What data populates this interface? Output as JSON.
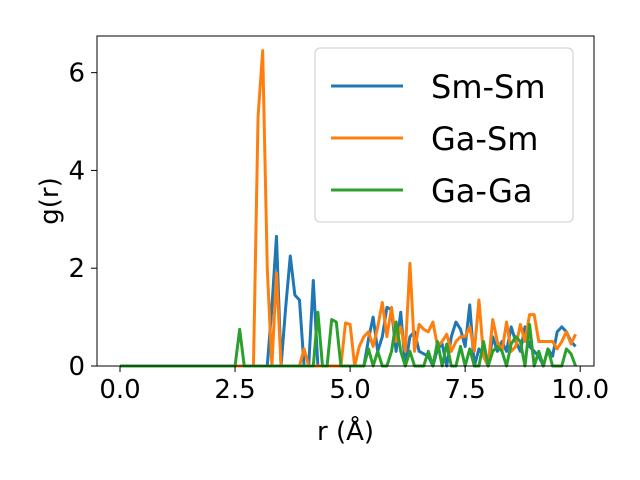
{
  "chart_data": {
    "type": "line",
    "title": "",
    "xlabel": "r (Å)",
    "ylabel": "g(r)",
    "xlim": [
      -0.5,
      10.3
    ],
    "ylim": [
      0,
      6.75
    ],
    "xticks": [
      0.0,
      2.5,
      5.0,
      7.5,
      10.0
    ],
    "xtick_labels": [
      "0.0",
      "2.5",
      "5.0",
      "7.5",
      "10.0"
    ],
    "yticks": [
      0,
      2,
      4,
      6
    ],
    "ytick_labels": [
      "0",
      "2",
      "4",
      "6"
    ],
    "grid": false,
    "legend_position": "upper right",
    "series": [
      {
        "name": "Sm-Sm",
        "color": "#1f77b4",
        "x": [
          0.0,
          3.2,
          3.3,
          3.4,
          3.5,
          3.6,
          3.7,
          3.8,
          3.9,
          4.0,
          4.1,
          4.2,
          4.3,
          4.4,
          4.5,
          5.3,
          5.4,
          5.5,
          5.6,
          5.7,
          5.8,
          5.9,
          6.0,
          6.1,
          6.2,
          6.3,
          6.4,
          6.5,
          6.6,
          6.7,
          6.8,
          6.9,
          7.0,
          7.1,
          7.2,
          7.3,
          7.4,
          7.5,
          7.6,
          7.7,
          7.8,
          7.9,
          8.0,
          8.1,
          8.2,
          8.3,
          8.4,
          8.5,
          8.6,
          8.7,
          8.8,
          8.9,
          9.0,
          9.1,
          9.2,
          9.3,
          9.4,
          9.5,
          9.6,
          9.7,
          9.8,
          9.9
        ],
        "y": [
          0.0,
          0.0,
          1.2,
          2.65,
          0.0,
          1.2,
          2.25,
          1.45,
          1.35,
          0.0,
          0.0,
          1.75,
          0.0,
          0.0,
          0.0,
          0.0,
          0.55,
          1.0,
          0.3,
          0.6,
          1.2,
          1.15,
          0.3,
          1.1,
          0.0,
          0.6,
          0.7,
          0.3,
          0.25,
          0.2,
          0.0,
          0.35,
          0.45,
          0.0,
          0.6,
          0.9,
          0.75,
          0.4,
          1.25,
          0.0,
          0.35,
          0.2,
          0.0,
          0.6,
          0.3,
          0.5,
          0.3,
          0.8,
          0.5,
          0.3,
          0.8,
          0.4,
          0.3,
          0.2,
          0.0,
          0.35,
          0.2,
          0.7,
          0.8,
          0.7,
          0.5,
          0.4
        ]
      },
      {
        "name": "Ga-Sm",
        "color": "#ff7f0e",
        "x": [
          0.0,
          2.9,
          3.0,
          3.1,
          3.2,
          3.3,
          3.4,
          3.5,
          3.8,
          3.9,
          4.0,
          4.1,
          4.2,
          4.8,
          4.9,
          5.0,
          5.1,
          5.2,
          5.3,
          5.4,
          5.5,
          5.6,
          5.7,
          5.8,
          5.9,
          6.0,
          6.1,
          6.2,
          6.3,
          6.4,
          6.5,
          6.6,
          6.7,
          6.8,
          6.9,
          7.0,
          7.1,
          7.2,
          7.3,
          7.4,
          7.5,
          7.6,
          7.7,
          7.8,
          7.9,
          8.0,
          8.1,
          8.2,
          8.3,
          8.4,
          8.5,
          8.6,
          8.7,
          8.8,
          8.9,
          9.0,
          9.1,
          9.2,
          9.3,
          9.4,
          9.5,
          9.6,
          9.7,
          9.8,
          9.9
        ],
        "y": [
          0.0,
          0.0,
          5.1,
          6.45,
          2.0,
          0.0,
          1.9,
          0.0,
          0.0,
          0.0,
          0.35,
          0.0,
          0.0,
          0.0,
          0.88,
          0.85,
          0.0,
          0.4,
          0.6,
          0.7,
          0.4,
          0.8,
          1.3,
          0.6,
          1.2,
          0.5,
          0.8,
          0.3,
          2.1,
          0.3,
          0.85,
          0.75,
          0.7,
          0.9,
          0.4,
          0.5,
          0.65,
          0.3,
          0.5,
          0.6,
          0.6,
          0.8,
          0.3,
          1.35,
          0.2,
          0.0,
          0.95,
          0.5,
          0.3,
          0.9,
          0.3,
          0.4,
          0.85,
          0.5,
          1.05,
          1.05,
          0.5,
          0.5,
          0.5,
          0.5,
          0.35,
          0.5,
          0.7,
          0.45,
          0.65
        ]
      },
      {
        "name": "Ga-Ga",
        "color": "#2ca02c",
        "x": [
          0.0,
          2.5,
          2.6,
          2.7,
          4.1,
          4.2,
          4.3,
          4.4,
          4.5,
          4.6,
          4.7,
          4.8,
          5.3,
          5.4,
          5.5,
          5.6,
          5.7,
          5.8,
          5.9,
          6.0,
          6.1,
          6.2,
          6.3,
          6.4,
          6.5,
          6.6,
          6.7,
          6.8,
          6.9,
          7.0,
          7.1,
          7.2,
          7.3,
          7.4,
          7.5,
          7.6,
          7.7,
          7.8,
          7.9,
          8.0,
          8.1,
          8.2,
          8.3,
          8.4,
          8.5,
          8.6,
          8.7,
          8.8,
          8.9,
          9.0,
          9.1,
          9.2,
          9.3,
          9.4,
          9.5,
          9.6,
          9.7,
          9.8,
          9.9
        ],
        "y": [
          0.0,
          0.0,
          0.75,
          0.0,
          0.0,
          0.0,
          1.1,
          0.0,
          0.0,
          0.95,
          0.9,
          0.0,
          0.0,
          0.35,
          0.0,
          0.3,
          0.0,
          0.0,
          0.3,
          0.9,
          0.3,
          0.0,
          0.3,
          0.0,
          0.0,
          0.0,
          0.3,
          0.0,
          0.5,
          0.0,
          0.45,
          0.0,
          0.0,
          0.4,
          0.0,
          0.35,
          0.0,
          0.0,
          0.5,
          0.0,
          0.3,
          0.4,
          0.3,
          0.0,
          0.45,
          0.6,
          0.5,
          0.0,
          0.85,
          0.0,
          0.3,
          0.0,
          0.35,
          0.0,
          0.0,
          0.0,
          0.35,
          0.25,
          0.0
        ]
      }
    ]
  }
}
